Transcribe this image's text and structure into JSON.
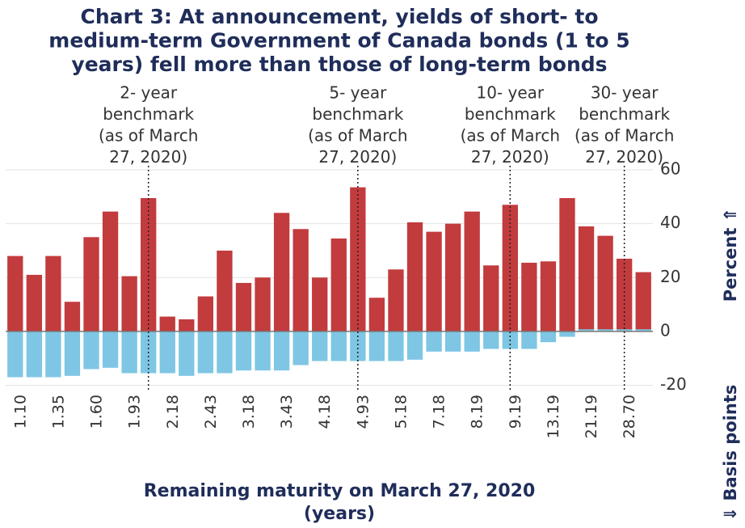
{
  "chart_data": {
    "type": "bar",
    "title": [
      "Chart 3: At announcement, yields of short- to",
      "medium-term Government of Canada bonds (1 to 5",
      "years) fell more than those of long-term bonds"
    ],
    "x_label": [
      "Remaining maturity on March 27, 2020",
      "(years)"
    ],
    "y_labels": [
      "⇓ Basis points",
      "Percent ⇑"
    ],
    "categories": [
      "1.10",
      null,
      "1.35",
      null,
      "1.60",
      null,
      "1.93",
      null,
      "2.18",
      null,
      "2.43",
      null,
      "3.18",
      null,
      "3.43",
      null,
      "4.18",
      null,
      "4.93",
      null,
      "5.18",
      null,
      "7.18",
      null,
      "8.19",
      null,
      "9.19",
      null,
      "13.19",
      null,
      "21.19",
      null,
      "28.70",
      null
    ],
    "series": [
      {
        "color": "#c23b3d",
        "values": [
          28,
          21,
          28,
          11,
          35,
          44.5,
          20.5,
          49.5,
          5.5,
          4.5,
          13,
          30,
          18,
          20,
          44,
          38,
          20,
          34.5,
          53.5,
          12.5,
          23,
          40.5,
          37,
          40,
          44.5,
          24.5,
          47,
          25.5,
          26,
          49.5,
          39,
          35.5,
          27,
          22
        ]
      },
      {
        "color": "#7ec6e4",
        "values": [
          -17,
          -17,
          -17,
          -16.5,
          -14,
          -13.5,
          -15.5,
          -15.5,
          -15.5,
          -16.5,
          -15.5,
          -15.5,
          -14.5,
          -14.5,
          -14.5,
          -12.5,
          -11,
          -11,
          -11,
          -11,
          -11,
          -10.5,
          -7.5,
          -7.5,
          -7.5,
          -6.5,
          -6.5,
          -6.5,
          -4,
          -2,
          0.8,
          0.8,
          0.8,
          0.8
        ]
      }
    ],
    "annotations": [
      {
        "bar": 7,
        "text": [
          "2- year",
          "benchmark",
          "(as of March",
          "27, 2020)"
        ]
      },
      {
        "bar": 18,
        "text": [
          "5- year",
          "benchmark",
          "(as of March",
          "27, 2020)"
        ]
      },
      {
        "bar": 26,
        "text": [
          "10- year",
          "benchmark",
          "(as of March",
          "27, 2020)"
        ]
      },
      {
        "bar": 32,
        "text": [
          "30- year",
          "benchmark",
          "(as of March",
          "27, 2020)"
        ]
      }
    ],
    "ylim": [
      -20,
      60
    ],
    "yticks": [
      -20,
      0,
      20,
      40,
      60
    ],
    "grid": true
  }
}
